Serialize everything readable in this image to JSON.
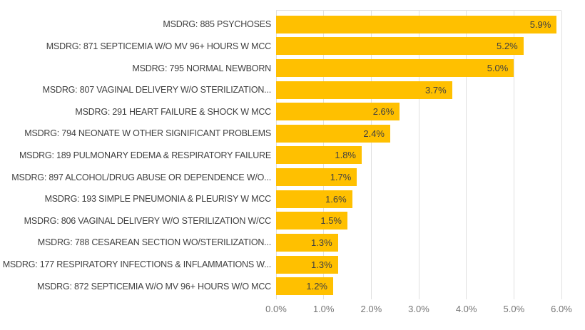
{
  "chart_data": {
    "type": "bar",
    "orientation": "horizontal",
    "title": "",
    "xlabel": "",
    "ylabel": "",
    "categories": [
      "MSDRG: 885 PSYCHOSES",
      "MSDRG: 871 SEPTICEMIA W/O MV 96+ HOURS W MCC",
      "MSDRG: 795 NORMAL NEWBORN",
      "MSDRG: 807 VAGINAL DELIVERY W/O STERILIZATION...",
      "MSDRG: 291 HEART FAILURE & SHOCK W MCC",
      "MSDRG: 794 NEONATE W OTHER SIGNIFICANT PROBLEMS",
      "MSDRG: 189 PULMONARY EDEMA & RESPIRATORY FAILURE",
      "MSDRG: 897 ALCOHOL/DRUG ABUSE OR DEPENDENCE W/O...",
      "MSDRG: 193 SIMPLE PNEUMONIA & PLEURISY W MCC",
      "MSDRG: 806 VAGINAL DELIVERY W/O STERILIZATION W/CC",
      "MSDRG: 788 CESAREAN SECTION WO/STERILIZATION...",
      "MSDRG: 177 RESPIRATORY INFECTIONS & INFLAMMATIONS W...",
      "MSDRG: 872 SEPTICEMIA W/O MV 96+ HOURS W/O MCC"
    ],
    "values": [
      5.9,
      5.2,
      5.0,
      3.7,
      2.6,
      2.4,
      1.8,
      1.7,
      1.6,
      1.5,
      1.3,
      1.3,
      1.2
    ],
    "value_labels": [
      "5.9%",
      "5.2%",
      "5.0%",
      "3.7%",
      "2.6%",
      "2.4%",
      "1.8%",
      "1.7%",
      "1.6%",
      "1.5%",
      "1.3%",
      "1.3%",
      "1.2%"
    ],
    "x_ticks": [
      "0.0%",
      "1.0%",
      "2.0%",
      "3.0%",
      "4.0%",
      "5.0%",
      "6.0%"
    ],
    "xlim": [
      0,
      6
    ],
    "grid": "vertical",
    "legend": "none",
    "colors": {
      "bar": "#FFC000",
      "category_label": "#404040",
      "value_label": "#404040",
      "axis_tick": "#757575",
      "gridline": "#E0E0E0",
      "background": "#FFFFFF"
    }
  }
}
